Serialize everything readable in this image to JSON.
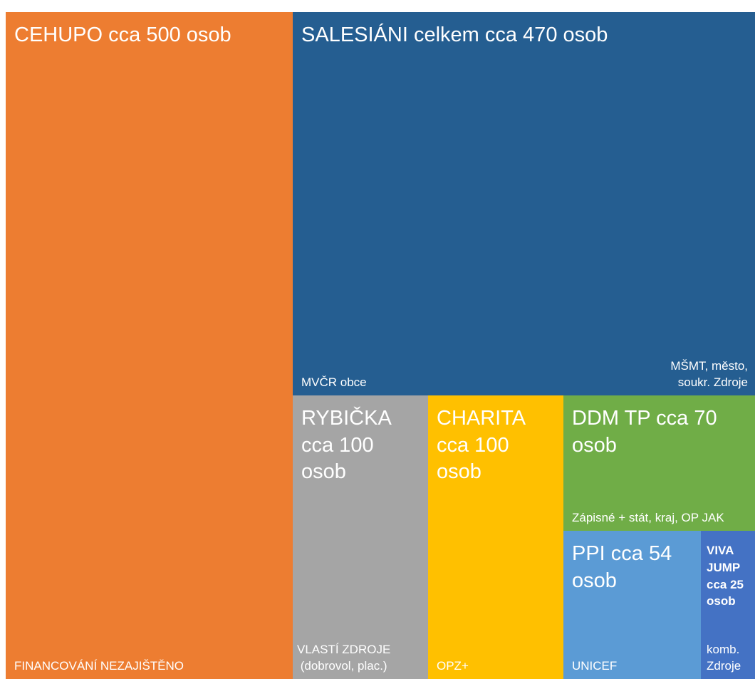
{
  "tiles": [
    {
      "label": "CEHUPO cca 500 osob",
      "notes": [
        "FINANCOVÁNÍ NEZAJIŠTĚNO"
      ]
    },
    {
      "label": "SALESIÁNI celkem cca 470 osob",
      "notes": [
        "MVČR obce",
        "MŠMT, město,\nsoukr. Zdroje"
      ]
    },
    {
      "label": "RYBIČKA\ncca 100\nosob",
      "notes": [
        "VLASTÍ ZDROJE\n(dobrovol, plac.)"
      ]
    },
    {
      "label": "CHARITA\ncca 100\nosob",
      "notes": [
        "OPZ+"
      ]
    },
    {
      "label": "DDM TP cca 70\nosob",
      "notes": [
        "Zápisné + stát, kraj, OP JAK"
      ]
    },
    {
      "label": "PPI cca 54\nosob",
      "notes": [
        "UNICEF"
      ]
    },
    {
      "label": "VIVA\nJUMP\ncca 25\nosob",
      "notes": [
        "komb.\nZdroje"
      ]
    }
  ]
}
